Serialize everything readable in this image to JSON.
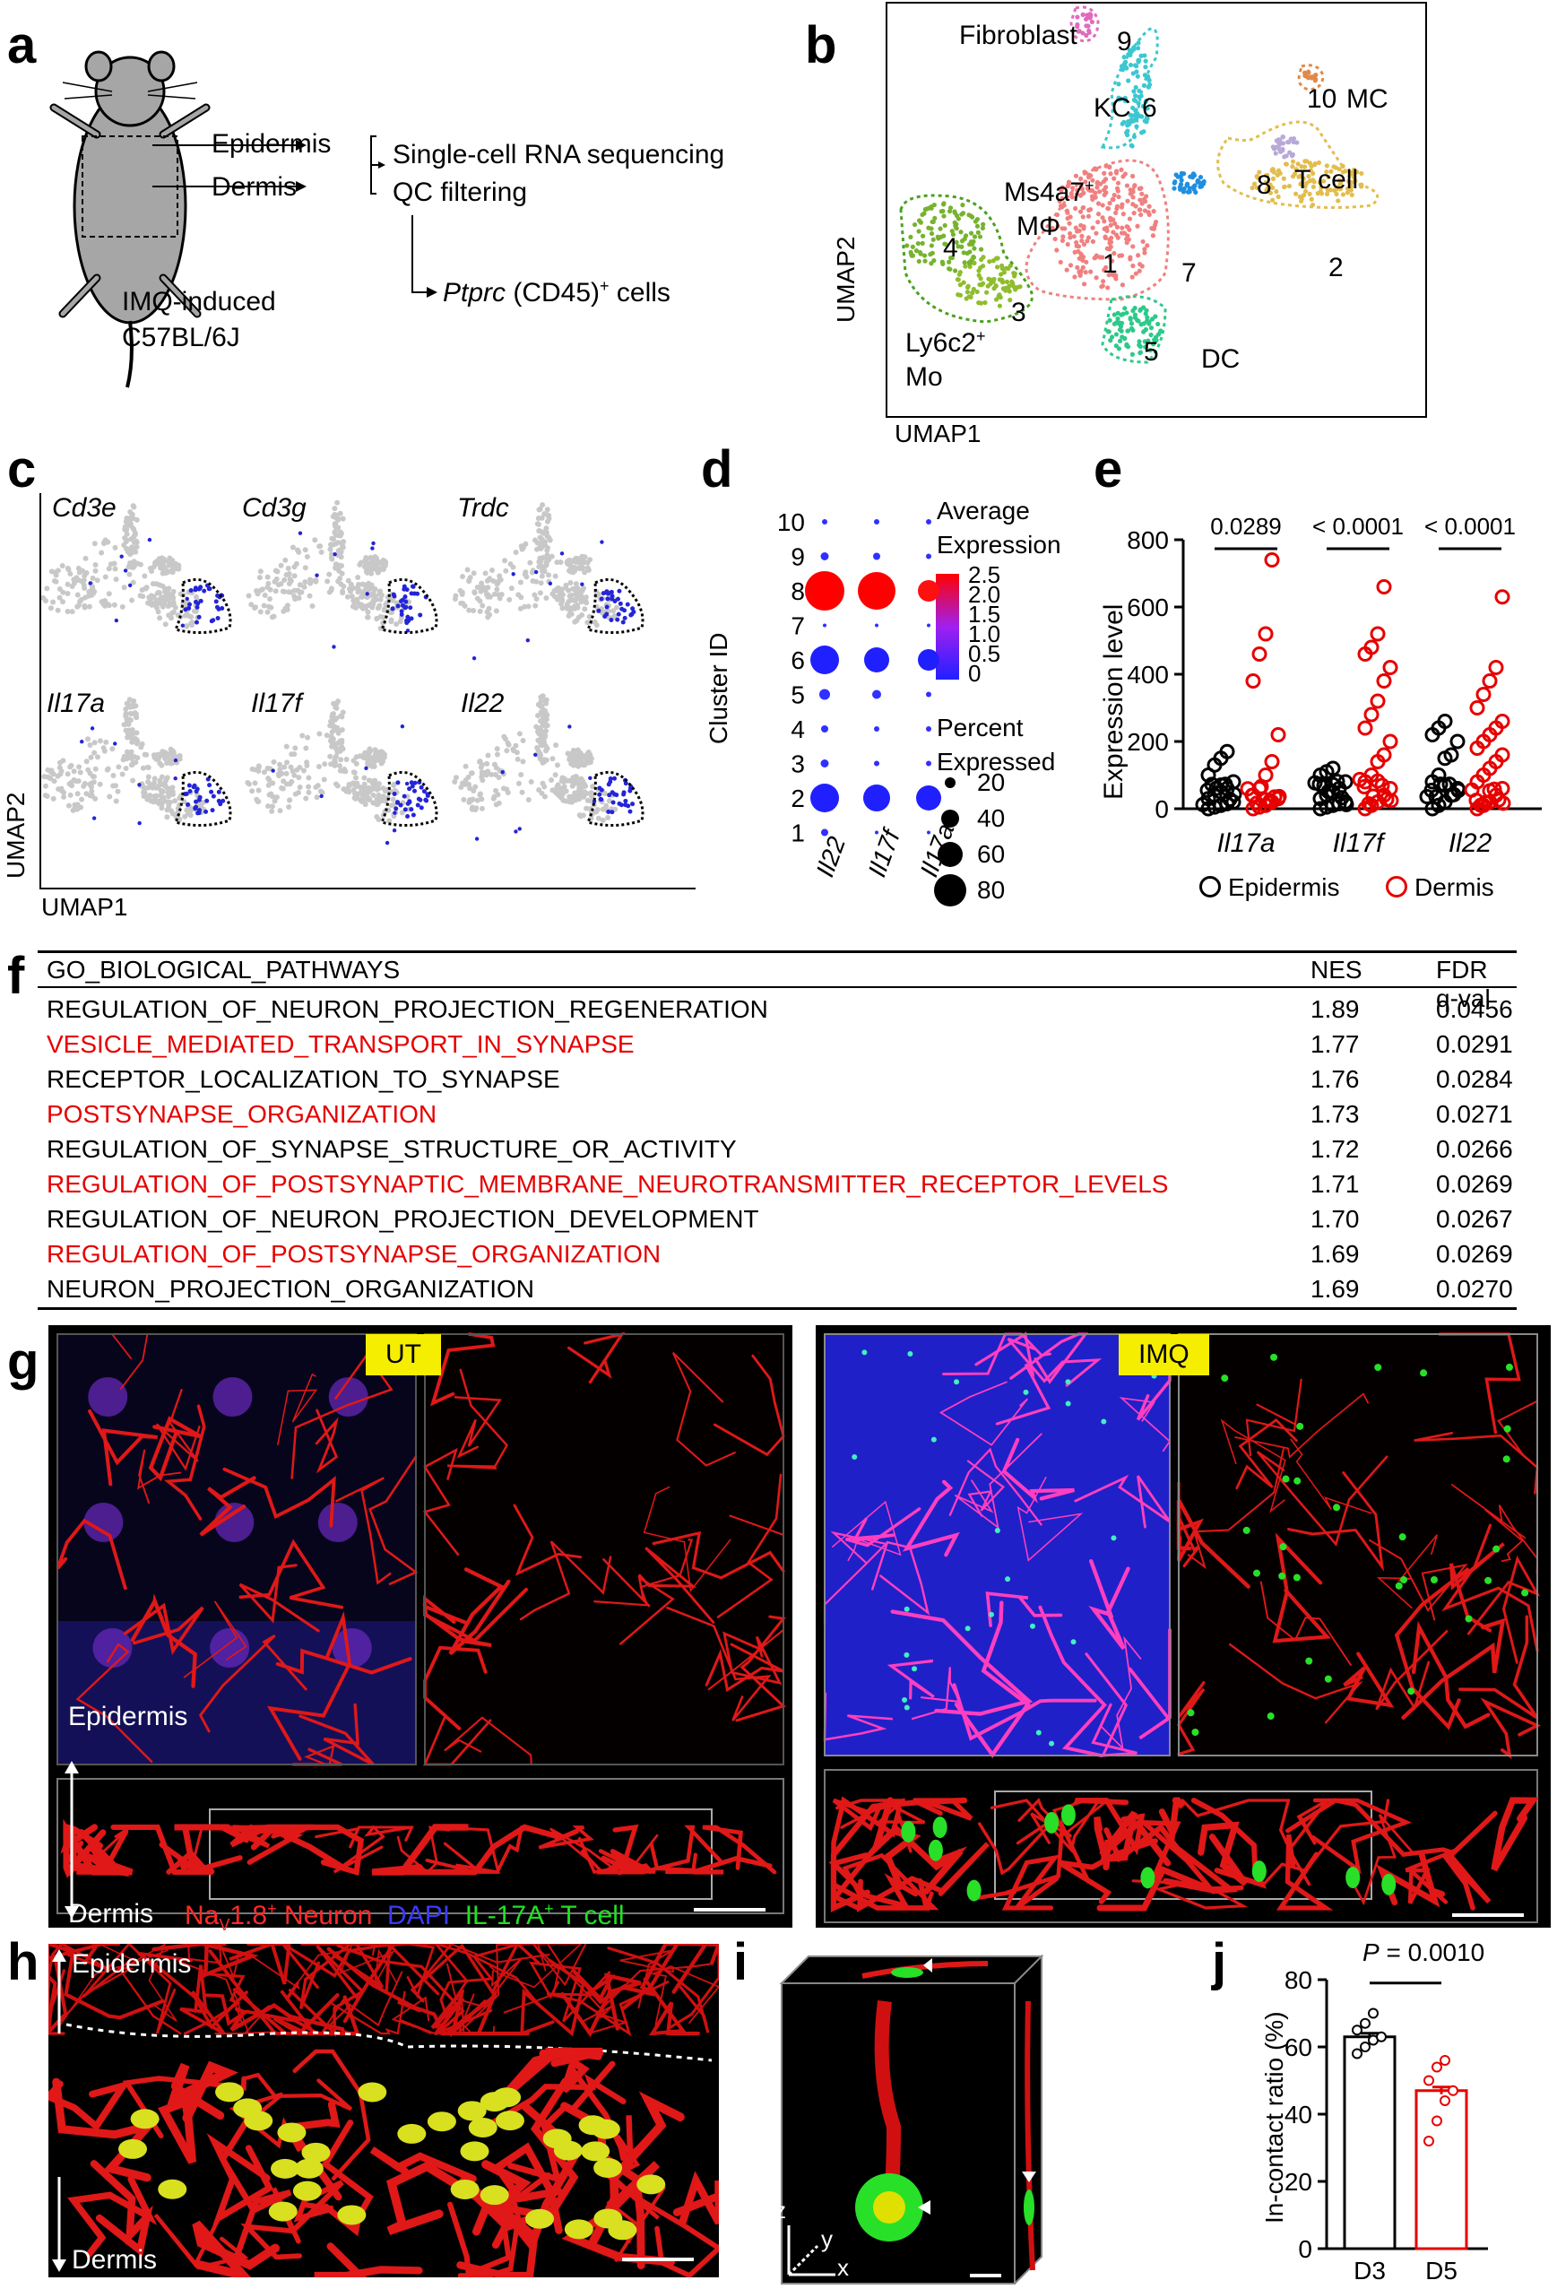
{
  "panel_labels": {
    "a": "a",
    "b": "b",
    "c": "c",
    "d": "d",
    "e": "e",
    "f": "f",
    "g": "g",
    "h": "h",
    "i": "i",
    "j": "j"
  },
  "panel_a": {
    "epidermis": "Epidermis",
    "dermis": "Dermis",
    "scrna": "Single-cell RNA sequencing",
    "qc": "QC filtering",
    "ptprc_gene": "Ptprc",
    "ptprc_rest": " (CD45)",
    "ptprc_sup": "+",
    "ptprc_end": " cells",
    "model_line1": "IMQ-induced",
    "model_line2": "C57BL/6J"
  },
  "panel_b": {
    "xlabel": "UMAP1",
    "ylabel": "UMAP2",
    "clusters": [
      {
        "id": "1",
        "name": "",
        "color": "#f08080"
      },
      {
        "id": "2",
        "name": "",
        "color": "#e3bd4d"
      },
      {
        "id": "3",
        "name": "",
        "color": "#8fbd2e"
      },
      {
        "id": "4",
        "name": "",
        "color": "#76b32e"
      },
      {
        "id": "5",
        "name": "DC",
        "color": "#2dc98a"
      },
      {
        "id": "6",
        "name": "KC",
        "color": "#3cc7d0"
      },
      {
        "id": "7",
        "name": "",
        "color": "#1f8fe0"
      },
      {
        "id": "8",
        "name": "T cell",
        "color": "#b8a9d8"
      },
      {
        "id": "9",
        "name": "Fibroblast",
        "color": "#e06bbd"
      },
      {
        "id": "10",
        "name": "MC",
        "color": "#e08a4a"
      }
    ],
    "label_ms4a7": "Ms4a7",
    "label_ms4a7_sup": "+",
    "label_mphi": "MΦ",
    "label_ly6c2": "Ly6c2",
    "label_ly6c2_sup": "+",
    "label_mo": "Mo"
  },
  "panel_c": {
    "genes": [
      "Cd3e",
      "Cd3g",
      "Trdc",
      "Il17a",
      "Il17f",
      "Il22"
    ],
    "xlabel": "UMAP1",
    "ylabel": "UMAP2"
  },
  "panel_d": {
    "ylabel": "Cluster ID",
    "genes": [
      "Il22",
      "Il17f",
      "Il17a"
    ],
    "clusters": [
      "10",
      "9",
      "8",
      "7",
      "6",
      "5",
      "4",
      "3",
      "2",
      "1"
    ],
    "avg_title_1": "Average",
    "avg_title_2": "Expression",
    "avg_ticks": [
      "2.5",
      "2.0",
      "1.5",
      "1.0",
      "0.5",
      "0"
    ],
    "pct_title_1": "Percent",
    "pct_title_2": "Expressed",
    "pct_ticks": [
      "20",
      "40",
      "60",
      "80"
    ],
    "colors": {
      "high": "#ff0000",
      "mid": "#a020f0",
      "low": "#2020ff"
    }
  },
  "panel_e": {
    "ylabel": "Expression level",
    "yticks": [
      "0",
      "200",
      "400",
      "600",
      "800"
    ],
    "groups": [
      "Il17a",
      "Il17f",
      "Il22"
    ],
    "pvalues": [
      "0.0289",
      "< 0.0001",
      "< 0.0001"
    ],
    "legend_epidermis": "Epidermis",
    "legend_dermis": "Dermis",
    "colors": {
      "epidermis": "#000000",
      "dermis": "#e60000"
    }
  },
  "panel_f": {
    "header": {
      "pathway": "GO_BIOLOGICAL_PATHWAYS",
      "nes": "NES",
      "fdr": "FDR q-val"
    },
    "rows": [
      {
        "pathway": "REGULATION_OF_NEURON_PROJECTION_REGENERATION",
        "nes": "1.89",
        "fdr": "0.0456",
        "highlight": false
      },
      {
        "pathway": "VESICLE_MEDIATED_TRANSPORT_IN_SYNAPSE",
        "nes": "1.77",
        "fdr": "0.0291",
        "highlight": true
      },
      {
        "pathway": "RECEPTOR_LOCALIZATION_TO_SYNAPSE",
        "nes": "1.76",
        "fdr": "0.0284",
        "highlight": false
      },
      {
        "pathway": "POSTSYNAPSE_ORGANIZATION",
        "nes": "1.73",
        "fdr": "0.0271",
        "highlight": true
      },
      {
        "pathway": "REGULATION_OF_SYNAPSE_STRUCTURE_OR_ACTIVITY",
        "nes": "1.72",
        "fdr": "0.0266",
        "highlight": false
      },
      {
        "pathway": "REGULATION_OF_POSTSYNAPTIC_MEMBRANE_NEUROTRANSMITTER_RECEPTOR_LEVELS",
        "nes": "1.71",
        "fdr": "0.0269",
        "highlight": true
      },
      {
        "pathway": "REGULATION_OF_NEURON_PROJECTION_DEVELOPMENT",
        "nes": "1.70",
        "fdr": "0.0267",
        "highlight": false
      },
      {
        "pathway": "REGULATION_OF_POSTSYNAPSE_ORGANIZATION",
        "nes": "1.69",
        "fdr": "0.0269",
        "highlight": true
      },
      {
        "pathway": "NEURON_PROJECTION_ORGANIZATION",
        "nes": "1.69",
        "fdr": "0.0270",
        "highlight": false
      }
    ],
    "highlight_color": "#e60000"
  },
  "panel_g": {
    "tag_ut": "UT",
    "tag_imq": "IMQ",
    "epidermis": "Epidermis",
    "dermis": "Dermis",
    "legend_nav": "Na",
    "legend_nav_sub": "V",
    "legend_nav_rest": "1.8",
    "legend_nav_sup": "+",
    "legend_nav_end": " Neuron",
    "legend_dapi": "DAPI",
    "legend_il17": "IL-17A",
    "legend_il17_sup": "+",
    "legend_il17_end": " T cell"
  },
  "panel_h": {
    "epidermis": "Epidermis",
    "dermis": "Dermis"
  },
  "panel_i": {
    "axis_z": "z",
    "axis_y": "y",
    "axis_x": "x"
  },
  "panel_j": {
    "ylabel": "In-contact ratio (%)",
    "yticks": [
      "0",
      "20",
      "40",
      "60",
      "80"
    ],
    "pvalue_label": "P",
    "pvalue_value": " = 0.0010",
    "categories": [
      "D3",
      "D5"
    ]
  },
  "chart_data": [
    {
      "type": "scatter",
      "panel": "e",
      "ylabel": "Expression level",
      "ylim": [
        0,
        800
      ],
      "categories": [
        "Il17a",
        "Il17f",
        "Il22"
      ],
      "series": [
        {
          "name": "Epidermis",
          "values": [
            [
              0,
              5,
              10,
              15,
              20,
              30,
              40,
              50,
              60,
              80,
              100,
              130,
              150,
              170
            ],
            [
              0,
              5,
              10,
              15,
              20,
              30,
              40,
              50,
              60,
              80,
              100,
              110,
              120
            ],
            [
              0,
              10,
              20,
              40,
              60,
              80,
              100,
              150,
              160,
              200,
              220,
              240,
              260
            ]
          ]
        },
        {
          "name": "Dermis",
          "values": [
            [
              0,
              5,
              10,
              20,
              30,
              40,
              60,
              100,
              140,
              220,
              380,
              460,
              520,
              740
            ],
            [
              0,
              10,
              20,
              40,
              60,
              80,
              100,
              140,
              160,
              200,
              240,
              280,
              320,
              380,
              420,
              460,
              480,
              520,
              660
            ],
            [
              0,
              10,
              20,
              40,
              60,
              80,
              100,
              120,
              140,
              160,
              180,
              200,
              220,
              240,
              260,
              300,
              340,
              380,
              420,
              630
            ]
          ]
        }
      ]
    },
    {
      "type": "bar",
      "panel": "j",
      "ylabel": "In-contact ratio (%)",
      "categories": [
        "D3",
        "D5"
      ],
      "values": [
        63,
        47
      ],
      "ylim": [
        0,
        80
      ],
      "points": [
        [
          58,
          60,
          62,
          63,
          65,
          67,
          70
        ],
        [
          32,
          38,
          44,
          47,
          50,
          54,
          56
        ]
      ]
    }
  ]
}
